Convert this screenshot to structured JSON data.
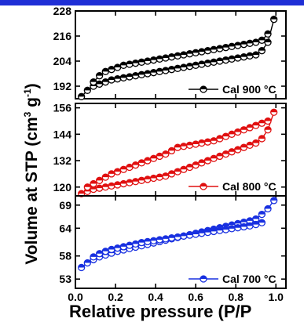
{
  "chart_data": [
    {
      "type": "scatter",
      "panel": "top",
      "ylim": [
        186,
        228
      ],
      "yticks": [
        "228",
        "216",
        "204",
        "192"
      ],
      "ytick_values": [
        228,
        216,
        204,
        192
      ],
      "xlim": [
        0.0,
        1.05
      ],
      "color": "#000000",
      "legend": "Cal 900 °C",
      "series": [
        {
          "name": "Cal 900 °C adsorption",
          "x": [
            0.03,
            0.06,
            0.09,
            0.12,
            0.15,
            0.18,
            0.21,
            0.24,
            0.27,
            0.3,
            0.33,
            0.36,
            0.39,
            0.42,
            0.45,
            0.48,
            0.51,
            0.54,
            0.57,
            0.6,
            0.63,
            0.66,
            0.69,
            0.72,
            0.75,
            0.78,
            0.81,
            0.84,
            0.87,
            0.9,
            0.93,
            0.96,
            0.99
          ],
          "y": [
            187,
            190,
            192,
            193,
            194,
            195,
            195.5,
            196,
            196.5,
            197,
            197.5,
            198,
            198.5,
            199,
            199.5,
            200,
            200.5,
            201,
            201.5,
            202,
            202.5,
            203,
            203.5,
            204,
            204.5,
            205,
            205.5,
            206,
            206.5,
            207,
            209,
            213,
            224
          ]
        },
        {
          "name": "Cal 900 °C desorption",
          "x": [
            0.96,
            0.93,
            0.9,
            0.87,
            0.84,
            0.81,
            0.78,
            0.75,
            0.72,
            0.69,
            0.66,
            0.63,
            0.6,
            0.57,
            0.54,
            0.51,
            0.48,
            0.45,
            0.42,
            0.39,
            0.36,
            0.33,
            0.3,
            0.27,
            0.24,
            0.21,
            0.18,
            0.15,
            0.12,
            0.09
          ],
          "y": [
            217,
            214,
            213,
            212.5,
            212,
            211.5,
            211,
            210.5,
            210,
            209.5,
            209,
            208.5,
            208,
            207.5,
            207,
            206.5,
            206,
            205.5,
            205,
            204.5,
            204,
            203.5,
            203,
            202.5,
            202,
            201,
            200,
            199,
            197,
            194
          ]
        }
      ]
    },
    {
      "type": "scatter",
      "panel": "middle",
      "ylim": [
        116,
        158
      ],
      "yticks": [
        "156",
        "144",
        "132",
        "120"
      ],
      "ytick_values": [
        156,
        144,
        132,
        120
      ],
      "xlim": [
        0.0,
        1.05
      ],
      "color": "#e01010",
      "legend": "Cal 800 °C",
      "series": [
        {
          "name": "Cal 800 °C adsorption",
          "x": [
            0.03,
            0.06,
            0.09,
            0.12,
            0.15,
            0.18,
            0.21,
            0.24,
            0.27,
            0.3,
            0.33,
            0.36,
            0.39,
            0.42,
            0.45,
            0.48,
            0.51,
            0.54,
            0.57,
            0.6,
            0.63,
            0.66,
            0.69,
            0.72,
            0.75,
            0.78,
            0.81,
            0.84,
            0.87,
            0.9,
            0.93,
            0.96,
            0.99
          ],
          "y": [
            117,
            118,
            119,
            119.5,
            120,
            120.5,
            121,
            121.5,
            122,
            122.5,
            123,
            123.5,
            124,
            124.5,
            125,
            126,
            127,
            128,
            129,
            130,
            131,
            132,
            133,
            134,
            135,
            136,
            137,
            138,
            139,
            140,
            142,
            146,
            154
          ]
        },
        {
          "name": "Cal 800 °C desorption",
          "x": [
            0.96,
            0.93,
            0.9,
            0.87,
            0.84,
            0.81,
            0.78,
            0.75,
            0.72,
            0.69,
            0.66,
            0.63,
            0.6,
            0.57,
            0.54,
            0.51,
            0.48,
            0.45,
            0.42,
            0.39,
            0.36,
            0.33,
            0.3,
            0.27,
            0.24,
            0.21,
            0.18,
            0.15,
            0.12,
            0.09,
            0.06
          ],
          "y": [
            150,
            149,
            148,
            147,
            146,
            145,
            144,
            143,
            142,
            141,
            140.5,
            140,
            139.5,
            139,
            138.5,
            138,
            136.5,
            135,
            134,
            133,
            132,
            131,
            130,
            129,
            128,
            127,
            126,
            124.5,
            123,
            121.5,
            120
          ]
        }
      ]
    },
    {
      "type": "scatter",
      "panel": "bottom",
      "ylim": [
        51,
        71
      ],
      "yticks": [
        "69",
        "64",
        "58",
        "53"
      ],
      "ytick_values": [
        69,
        64,
        58,
        53
      ],
      "xlim": [
        0.0,
        1.05
      ],
      "color": "#1830e0",
      "legend": "Cal 700 °C",
      "series": [
        {
          "name": "Cal 700 °C adsorption",
          "x": [
            0.03,
            0.06,
            0.09,
            0.12,
            0.15,
            0.18,
            0.21,
            0.24,
            0.27,
            0.3,
            0.33,
            0.36,
            0.39,
            0.42,
            0.45,
            0.48,
            0.51,
            0.54,
            0.57,
            0.6,
            0.63,
            0.66,
            0.69,
            0.72,
            0.75,
            0.78,
            0.81,
            0.84,
            0.87,
            0.9,
            0.93,
            0.96,
            0.99
          ],
          "y": [
            55.5,
            56.5,
            57.2,
            57.8,
            58.2,
            58.6,
            59,
            59.3,
            59.6,
            59.9,
            60.2,
            60.5,
            60.8,
            61.1,
            61.4,
            61.7,
            62,
            62.3,
            62.6,
            62.9,
            63.2,
            63.5,
            63.8,
            64.1,
            64.4,
            64.7,
            65,
            65.3,
            65.6,
            66,
            67,
            68.2,
            70
          ]
        },
        {
          "name": "Cal 700 °C desorption",
          "x": [
            0.93,
            0.9,
            0.87,
            0.84,
            0.81,
            0.78,
            0.75,
            0.72,
            0.69,
            0.66,
            0.63,
            0.6,
            0.57,
            0.54,
            0.51,
            0.48,
            0.45,
            0.42,
            0.39,
            0.36,
            0.33,
            0.3,
            0.27,
            0.24,
            0.21,
            0.18,
            0.15,
            0.12,
            0.09
          ],
          "y": [
            65.2,
            64.8,
            64.5,
            64.3,
            64.1,
            63.9,
            63.7,
            63.5,
            63.3,
            63.1,
            62.9,
            62.7,
            62.5,
            62.3,
            62.1,
            61.9,
            61.7,
            61.5,
            61.3,
            61.1,
            60.9,
            60.6,
            60.3,
            60,
            59.7,
            59.4,
            59,
            58.5,
            57.8
          ]
        }
      ]
    }
  ],
  "x_axis": {
    "ticks": [
      "0.0",
      "0.2",
      "0.4",
      "0.6",
      "0.8",
      "1.0"
    ],
    "tick_values": [
      0.0,
      0.2,
      0.4,
      0.6,
      0.8,
      1.0
    ],
    "label": "Relative pressure (P/P"
  },
  "y_axis_label": "Volume at STP (cm",
  "y_axis_label_sup": "3",
  "y_axis_label_unit": " g",
  "y_axis_label_sup2": "-1",
  "y_axis_label_end": ")",
  "colors": {
    "banner": "#1f2fd6",
    "black": "#000000",
    "red": "#e01010",
    "blue": "#1830e0"
  }
}
